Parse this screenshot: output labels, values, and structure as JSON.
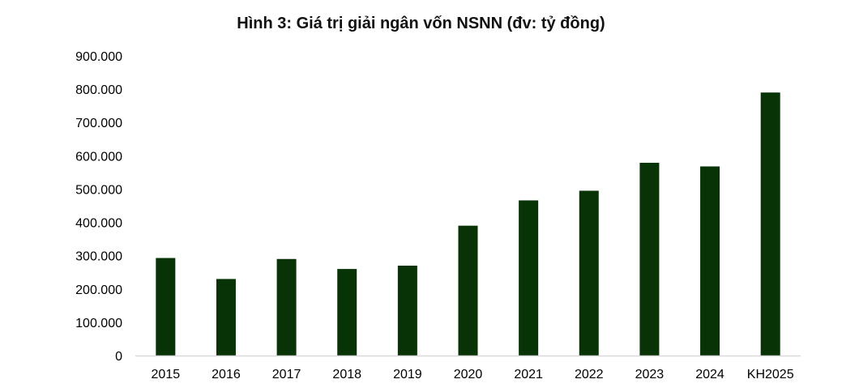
{
  "chart_data": {
    "type": "bar",
    "title": "Hình 3: Giá trị giải ngân vốn NSNN (đv: tỷ đồng)",
    "xlabel": "",
    "ylabel": "",
    "categories": [
      "2015",
      "2016",
      "2017",
      "2018",
      "2019",
      "2020",
      "2021",
      "2022",
      "2023",
      "2024",
      "KH2025"
    ],
    "values": [
      293000,
      230000,
      290000,
      260000,
      270000,
      390000,
      466000,
      495000,
      579000,
      568000,
      790000
    ],
    "ylim": [
      0,
      900000
    ],
    "yticks": [
      0,
      100000,
      200000,
      300000,
      400000,
      500000,
      600000,
      700000,
      800000,
      900000
    ],
    "ytick_labels": [
      "0",
      "100.000",
      "200.000",
      "300.000",
      "400.000",
      "500.000",
      "600.000",
      "700.000",
      "800.000",
      "900.000"
    ],
    "grid": false,
    "legend": "none",
    "bar_color": "#073307",
    "axis_color": "#d9d9d9"
  }
}
